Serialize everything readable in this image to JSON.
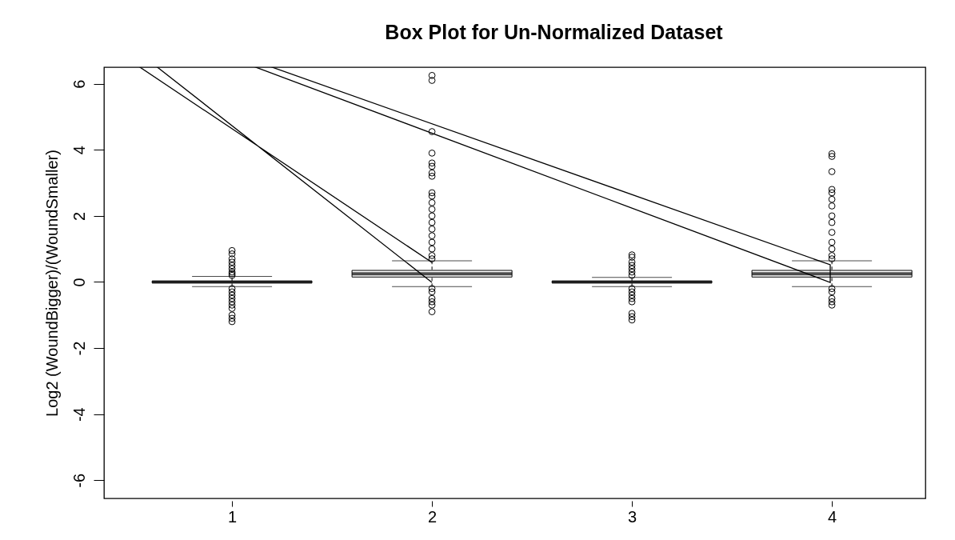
{
  "chart_data": {
    "type": "box",
    "title": "Box Plot for Un-Normalized Dataset",
    "ylabel": "Log2 (WoundBigger)/(WoundSmaller)",
    "categories": [
      "1",
      "2",
      "3",
      "4"
    ],
    "ylim": [
      -6.55,
      6.5
    ],
    "yticks": [
      -6,
      -4,
      -2,
      0,
      2,
      4,
      6
    ],
    "boxes": [
      {
        "low": -0.14,
        "q1": -0.02,
        "median": 0,
        "q3": 0.02,
        "high": 0.17,
        "outliers": [
          0.95,
          0.85,
          0.7,
          0.6,
          0.5,
          0.4,
          0.3,
          0.25,
          0.2,
          -0.2,
          -0.3,
          -0.4,
          -0.5,
          -0.6,
          -0.7,
          -0.8,
          -1.0,
          -1.1,
          -1.2
        ]
      },
      {
        "low": -0.14,
        "q1": 0.15,
        "median": 0.25,
        "q3": 0.35,
        "high": 0.64,
        "outliers": [
          6.25,
          6.1,
          4.55,
          3.9,
          3.6,
          3.5,
          3.3,
          3.2,
          2.7,
          2.6,
          2.4,
          2.2,
          2.0,
          1.8,
          1.6,
          1.4,
          1.2,
          1.0,
          0.8,
          0.7,
          -0.2,
          -0.3,
          -0.5,
          -0.6,
          -0.7,
          -0.9
        ]
      },
      {
        "low": -0.14,
        "q1": -0.02,
        "median": 0,
        "q3": 0.02,
        "high": 0.14,
        "outliers": [
          0.82,
          0.75,
          0.6,
          0.5,
          0.4,
          0.3,
          0.2,
          -0.2,
          -0.3,
          -0.4,
          -0.5,
          -0.6,
          -0.95,
          -1.05,
          -1.15
        ]
      },
      {
        "low": -0.14,
        "q1": 0.15,
        "median": 0.25,
        "q3": 0.35,
        "high": 0.64,
        "outliers": [
          3.88,
          3.8,
          3.34,
          2.8,
          2.7,
          2.5,
          2.3,
          2.0,
          1.8,
          1.5,
          1.2,
          1.0,
          0.8,
          0.7,
          -0.2,
          -0.3,
          -0.5,
          -0.6,
          -0.7
        ]
      }
    ]
  }
}
